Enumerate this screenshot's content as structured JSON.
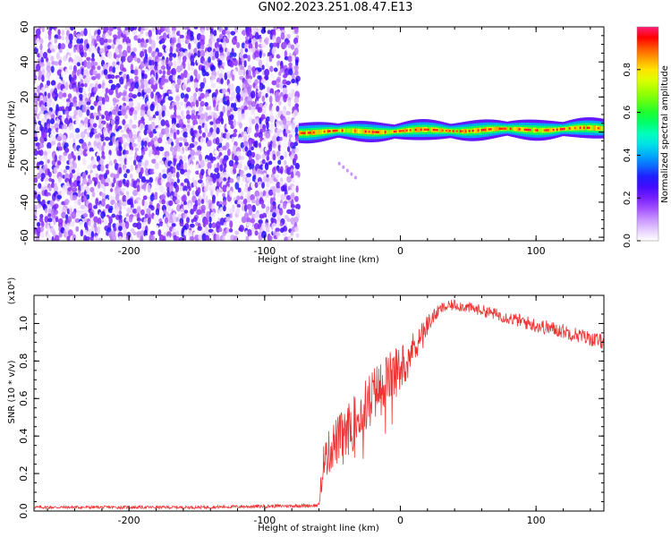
{
  "title": "GN02.2023.251.08.47.E13",
  "chart_data": [
    {
      "type": "heatmap",
      "title": "GN02.2023.251.08.47.E13",
      "xlabel": "Height of straight line (km)",
      "ylabel": "Frequency (Hz)",
      "xlim": [
        -270,
        150
      ],
      "ylim": [
        -62,
        60
      ],
      "xticks": [
        -200,
        -100,
        0,
        100
      ],
      "yticks": [
        -60,
        -40,
        -20,
        0,
        20,
        40,
        60
      ],
      "colorbar": {
        "label": "Normalized spectral amplitude",
        "range": [
          0,
          1
        ],
        "ticks": [
          0.0,
          0.2,
          0.4,
          0.6,
          0.8
        ],
        "colors": [
          "#ffffff",
          "#cfa6ff",
          "#8000ff",
          "#0000ff",
          "#00c8ff",
          "#00ff80",
          "#40ff00",
          "#ffff00",
          "#ff8000",
          "#ff0000",
          "#ff1a80"
        ]
      },
      "features": [
        {
          "name": "broadband noise",
          "x_range": [
            -270,
            -75
          ],
          "y_range": [
            -62,
            60
          ],
          "amplitude_range": [
            0.0,
            0.25
          ]
        },
        {
          "name": "signal band",
          "x_range": [
            -75,
            150
          ],
          "center_frequency": [
            0,
            1,
            2
          ],
          "half_width_hz": 5,
          "peak_amplitude": 0.95
        }
      ],
      "grid": false
    },
    {
      "type": "line",
      "xlabel": "Height of straight line (km)",
      "ylabel": "SNR (10 * v/v)",
      "y_multiplier": "(x10⁴)",
      "xlim": [
        -270,
        150
      ],
      "ylim": [
        0,
        1.15
      ],
      "xticks": [
        -200,
        -100,
        0,
        100
      ],
      "yticks": [
        0.0,
        0.2,
        0.4,
        0.6,
        0.8,
        1.0
      ],
      "color": "#ee3333",
      "x": [
        -270,
        -150,
        -60,
        -57,
        -50,
        -40,
        -30,
        -20,
        -10,
        0,
        10,
        20,
        30,
        40,
        60,
        80,
        100,
        120,
        150
      ],
      "y": [
        0.02,
        0.02,
        0.03,
        0.25,
        0.35,
        0.42,
        0.52,
        0.62,
        0.7,
        0.76,
        0.88,
        1.0,
        1.08,
        1.1,
        1.07,
        1.03,
        0.99,
        0.96,
        0.9
      ],
      "noise": [
        0.008,
        0.008,
        0.01,
        0.1,
        0.13,
        0.14,
        0.14,
        0.15,
        0.14,
        0.13,
        0.08,
        0.05,
        0.03,
        0.03,
        0.03,
        0.035,
        0.04,
        0.04,
        0.04
      ],
      "grid": false
    }
  ]
}
